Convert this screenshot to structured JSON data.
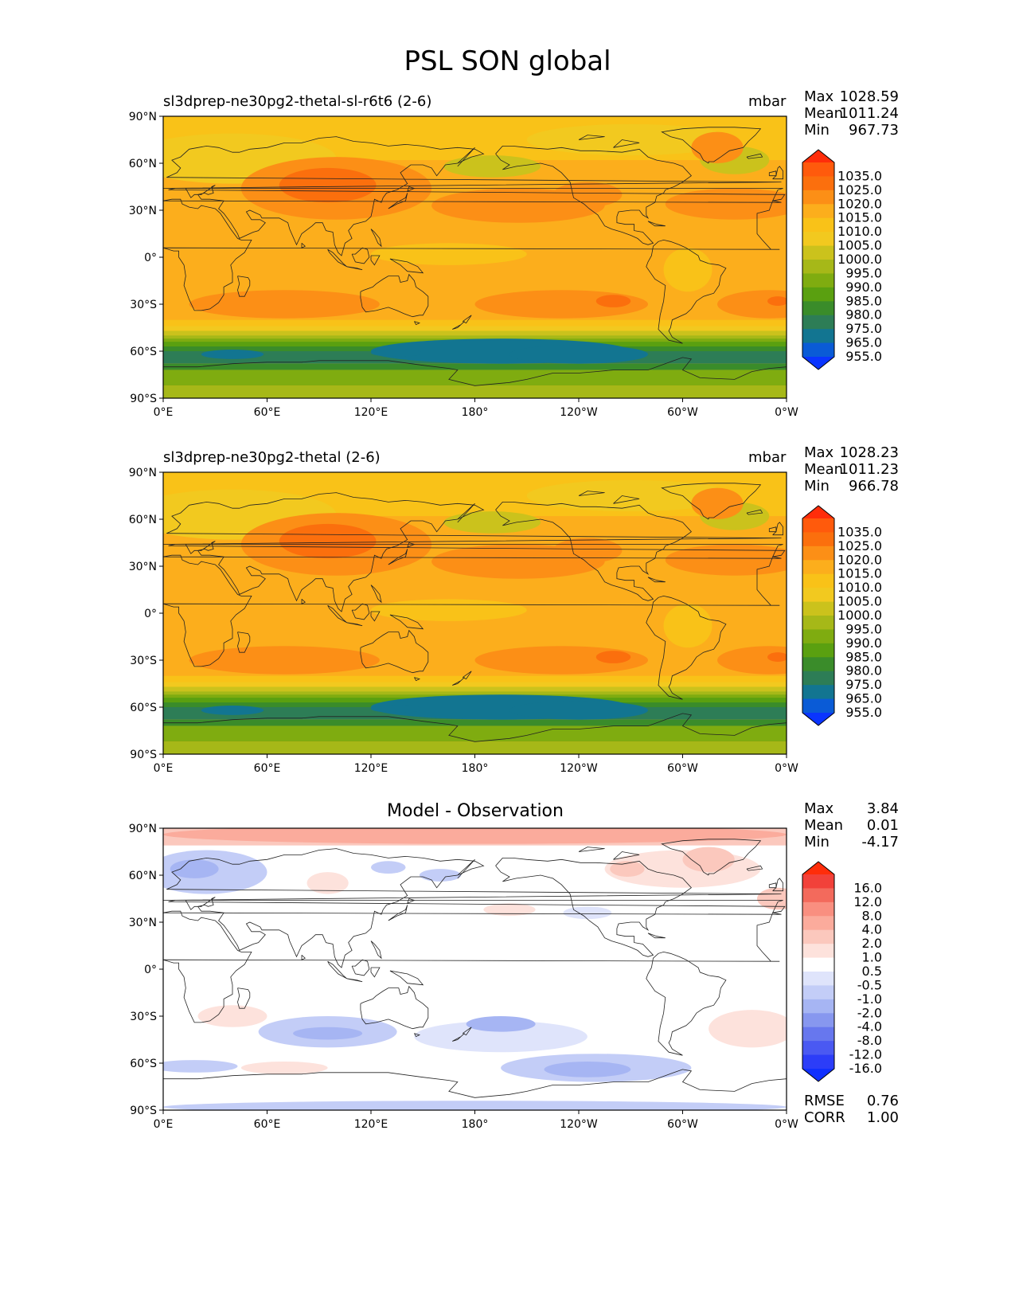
{
  "suptitle": "PSL SON global",
  "panels": [
    {
      "title_left": "sl3dprep-ne30pg2-thetal-sl-r6t6 (2-6)",
      "title_right": "mbar",
      "stats": [
        {
          "label": "Max",
          "value": "1028.59"
        },
        {
          "label": "Mean",
          "value": "1011.24"
        },
        {
          "label": "Min",
          "value": "967.73"
        }
      ]
    },
    {
      "title_left": "sl3dprep-ne30pg2-thetal (2-6)",
      "title_right": "mbar",
      "stats": [
        {
          "label": "Max",
          "value": "1028.23"
        },
        {
          "label": "Mean",
          "value": "1011.23"
        },
        {
          "label": "Min",
          "value": "966.78"
        }
      ]
    },
    {
      "title_center": "Model - Observation",
      "stats": [
        {
          "label": "Max",
          "value": "3.84"
        },
        {
          "label": "Mean",
          "value": "0.01"
        },
        {
          "label": "Min",
          "value": "-4.17"
        }
      ],
      "metrics": [
        {
          "label": "RMSE",
          "value": "0.76"
        },
        {
          "label": "CORR",
          "value": "1.00"
        }
      ]
    }
  ],
  "chart_data": [
    {
      "type": "heatmap",
      "title": "sl3dprep-ne30pg2-thetal-sl-r6t6 (2-6)",
      "units": "mbar",
      "xlim": [
        0,
        360
      ],
      "ylim": [
        -90,
        90
      ],
      "x_ticks": [
        "0°E",
        "60°E",
        "120°E",
        "180°",
        "120°W",
        "60°W",
        "0°W"
      ],
      "y_ticks": [
        "90°N",
        "60°N",
        "30°N",
        "0°",
        "30°S",
        "60°S",
        "90°S"
      ],
      "colorbar_levels": [
        "1035.0",
        "1025.0",
        "1020.0",
        "1015.0",
        "1010.0",
        "1005.0",
        "1000.0",
        "995.0",
        "990.0",
        "985.0",
        "980.0",
        "975.0",
        "965.0",
        "955.0"
      ],
      "colors": [
        "#ff2d0a",
        "#ff5a0c",
        "#fb6f0d",
        "#fc8f16",
        "#fcae1c",
        "#f9c218",
        "#f2c91f",
        "#cbc21c",
        "#a6b818",
        "#7fac10",
        "#5aa010",
        "#3a8c2a",
        "#2d7d56",
        "#127591",
        "#0a5bd6",
        "#0a35ff"
      ],
      "stats": {
        "max": 1028.59,
        "mean": 1011.24,
        "min": 967.73
      }
    },
    {
      "type": "heatmap",
      "title": "sl3dprep-ne30pg2-thetal (2-6)",
      "units": "mbar",
      "xlim": [
        0,
        360
      ],
      "ylim": [
        -90,
        90
      ],
      "x_ticks": [
        "0°E",
        "60°E",
        "120°E",
        "180°",
        "120°W",
        "60°W",
        "0°W"
      ],
      "y_ticks": [
        "90°N",
        "60°N",
        "30°N",
        "0°",
        "30°S",
        "60°S",
        "90°S"
      ],
      "colorbar_levels": [
        "1035.0",
        "1025.0",
        "1020.0",
        "1015.0",
        "1010.0",
        "1005.0",
        "1000.0",
        "995.0",
        "990.0",
        "985.0",
        "980.0",
        "975.0",
        "965.0",
        "955.0"
      ],
      "colors": [
        "#ff2d0a",
        "#ff5a0c",
        "#fb6f0d",
        "#fc8f16",
        "#fcae1c",
        "#f9c218",
        "#f2c91f",
        "#cbc21c",
        "#a6b818",
        "#7fac10",
        "#5aa010",
        "#3a8c2a",
        "#2d7d56",
        "#127591",
        "#0a5bd6",
        "#0a35ff"
      ],
      "stats": {
        "max": 1028.23,
        "mean": 1011.23,
        "min": 966.78
      }
    },
    {
      "type": "heatmap",
      "title": "Model - Observation",
      "xlim": [
        0,
        360
      ],
      "ylim": [
        -90,
        90
      ],
      "x_ticks": [
        "0°E",
        "60°E",
        "120°E",
        "180°",
        "120°W",
        "60°W",
        "0°W"
      ],
      "y_ticks": [
        "90°N",
        "60°N",
        "30°N",
        "0°",
        "30°S",
        "60°S",
        "90°S"
      ],
      "colorbar_levels": [
        "16.0",
        "12.0",
        "8.0",
        "4.0",
        "2.0",
        "1.0",
        "0.5",
        "-0.5",
        "-1.0",
        "-2.0",
        "-4.0",
        "-8.0",
        "-12.0",
        "-16.0"
      ],
      "colors": [
        "#ff2d0a",
        "#f2413a",
        "#f36a5c",
        "#f98f80",
        "#fbab9c",
        "#fbc8bd",
        "#fde2dc",
        "#ffffff",
        "#dfe4fb",
        "#c3cdf7",
        "#a6b5f3",
        "#8797ef",
        "#6777ee",
        "#4a59f2",
        "#2c3df8",
        "#1030ff"
      ],
      "stats": {
        "max": 3.84,
        "mean": 0.01,
        "min": -4.17
      },
      "rmse": 0.76,
      "corr": 1.0
    }
  ]
}
